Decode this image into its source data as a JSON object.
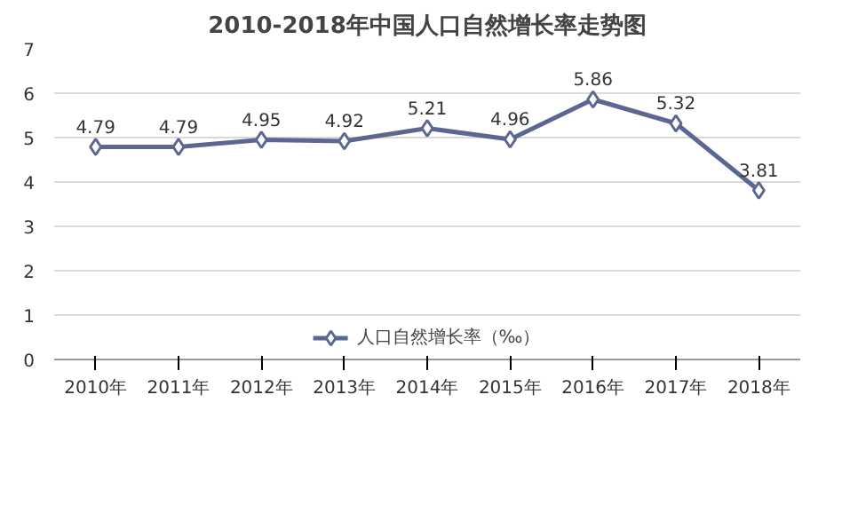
{
  "chart_data": {
    "type": "line",
    "title": "2010-2018年中国人口自然增长率走势图",
    "categories": [
      "2010年",
      "2011年",
      "2012年",
      "2013年",
      "2014年",
      "2015年",
      "2016年",
      "2017年",
      "2018年"
    ],
    "series": [
      {
        "name": "人口自然增长率（‰）",
        "color": "#5b6791",
        "values": [
          4.79,
          4.79,
          4.95,
          4.92,
          5.21,
          4.96,
          5.86,
          5.32,
          3.81
        ]
      }
    ],
    "ylim": [
      0,
      7
    ],
    "yticks": [
      0,
      1,
      2,
      3,
      4,
      5,
      6,
      7
    ],
    "grid": "y",
    "legend": "bottom",
    "marker": "diamond",
    "line_style": "solid",
    "data_labels": true
  }
}
